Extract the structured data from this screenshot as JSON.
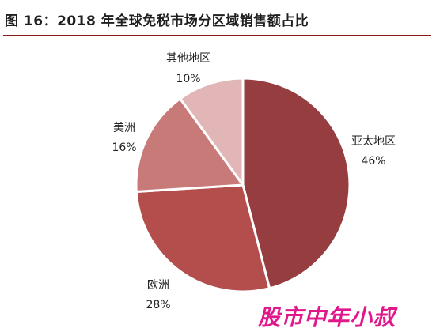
{
  "header": {
    "title": "图 16：2018 年全球免税市场分区域销售额占比"
  },
  "chart_data": {
    "type": "pie",
    "title": "图 16：2018 年全球免税市场分区域销售额占比",
    "start_angle_deg": 0,
    "direction": "clockwise",
    "slices": [
      {
        "label": "亚太地区",
        "value": 46,
        "display": "46%",
        "color": "#953d3f"
      },
      {
        "label": "欧洲",
        "value": 28,
        "display": "28%",
        "color": "#b44e4d"
      },
      {
        "label": "美洲",
        "value": 16,
        "display": "16%",
        "color": "#c87a78"
      },
      {
        "label": "其他地区",
        "value": 10,
        "display": "10%",
        "color": "#e2b6b6"
      }
    ]
  },
  "watermark": {
    "text": "股市中年小叔"
  }
}
